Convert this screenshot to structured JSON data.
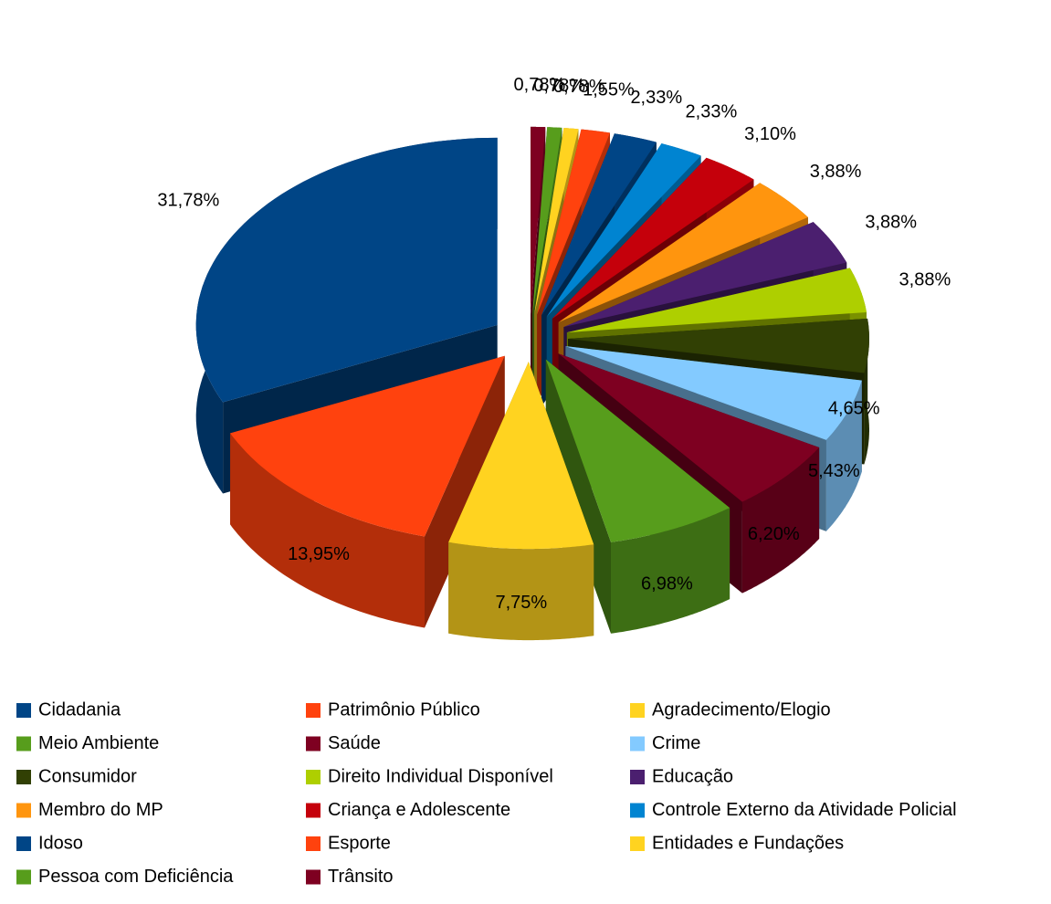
{
  "chart_data": {
    "type": "pie",
    "categories": [
      "Cidadania",
      "Patrimônio Público",
      "Agradecimento/Elogio",
      "Meio Ambiente",
      "Saúde",
      "Crime",
      "Consumidor",
      "Direito Individual Disponível",
      "Educação",
      "Membro do MP",
      "Criança e Adolescente",
      "Controle Externo da Atividade Policial",
      "Idoso",
      "Esporte",
      "Entidades e Fundações",
      "Pessoa com Deficiência",
      "Trânsito"
    ],
    "values": [
      31.78,
      13.95,
      7.75,
      6.98,
      6.2,
      5.43,
      4.65,
      3.88,
      3.88,
      3.88,
      3.1,
      2.33,
      2.33,
      1.55,
      0.78,
      0.78,
      0.78
    ],
    "value_labels": [
      "31,78%",
      "13,95%",
      "7,75%",
      "6,98%",
      "6,20%",
      "5,43%",
      "4,65%",
      "3,88%",
      "3,88%",
      "3,88%",
      "3,10%",
      "2,33%",
      "2,33%",
      "1,55%",
      "0,78%",
      "0,78%",
      "0,78%"
    ],
    "colors": [
      "#004586",
      "#ff420e",
      "#ffd320",
      "#579d1c",
      "#7e0021",
      "#83caff",
      "#314004",
      "#aecf00",
      "#4b1f6f",
      "#ff950e",
      "#c5000b",
      "#0084d1",
      "#004586",
      "#ff420e",
      "#ffd320",
      "#579d1c",
      "#7e0021"
    ],
    "legend": "bottom"
  }
}
